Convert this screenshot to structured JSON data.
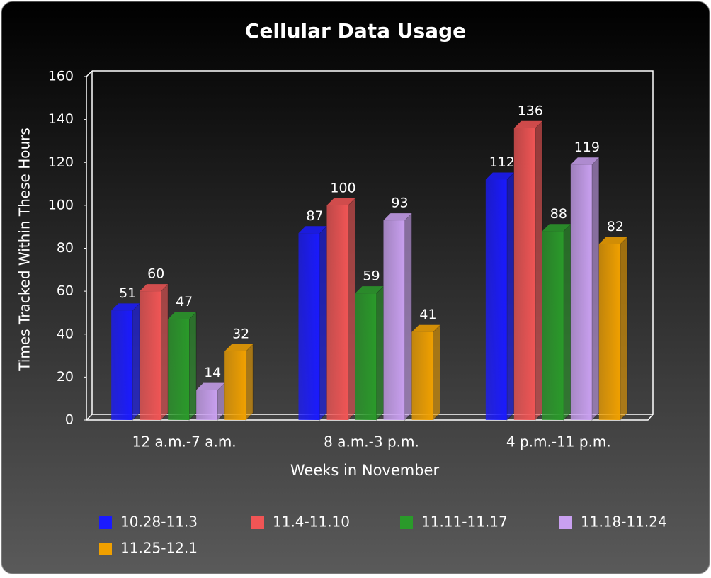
{
  "chart_data": {
    "type": "bar",
    "title": "Cellular Data Usage",
    "x_label": "Weeks in November",
    "y_label": "Times Tracked Within These Hours",
    "categories": [
      "12 a.m.-7 a.m.",
      "8 a.m.-3 p.m.",
      "4 p.m.-11 p.m."
    ],
    "series": [
      {
        "name": "10.28-11.3",
        "color": "#1a1aff",
        "values": [
          51,
          87,
          112
        ]
      },
      {
        "name": "11.4-11.10",
        "color": "#f05555",
        "values": [
          60,
          100,
          136
        ]
      },
      {
        "name": "11.11-11.17",
        "color": "#2a9a2a",
        "values": [
          47,
          59,
          88
        ]
      },
      {
        "name": "11.18-11.24",
        "color": "#c9a0f0",
        "values": [
          14,
          93,
          119
        ]
      },
      {
        "name": "11.25-12.1",
        "color": "#f0a000",
        "values": [
          32,
          41,
          82
        ]
      }
    ],
    "ylim": [
      0,
      160
    ],
    "yticks": [
      0,
      20,
      40,
      60,
      80,
      100,
      120,
      140,
      160
    ],
    "legend": "bottom"
  }
}
